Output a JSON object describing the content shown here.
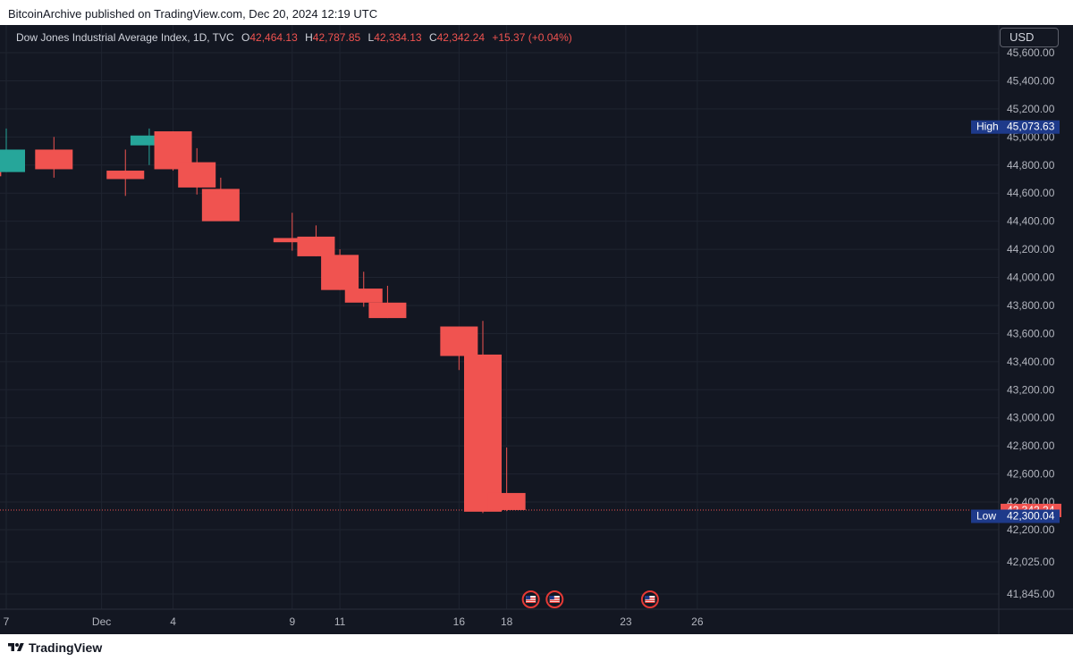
{
  "header": {
    "published_line": "BitcoinArchive published on TradingView.com, Dec 20, 2024 12:19 UTC"
  },
  "legend": {
    "symbol": "Dow Jones Industrial Average Index, 1D, TVC",
    "open_key": "O",
    "open_value": "42,464.13",
    "high_key": "H",
    "high_value": "42,787.85",
    "low_key": "L",
    "low_value": "42,334.13",
    "close_key": "C",
    "close_value": "42,342.24",
    "change": "+15.37 (+0.04%)"
  },
  "currency_button": "USD",
  "footer": {
    "logo_text": "TradingView"
  },
  "colors": {
    "background": "#131722",
    "grid": "#1f2430",
    "up": "#26a69a",
    "down": "#f05350",
    "axis_text": "#b2b5be",
    "marker_blue": "#1e3a8a"
  },
  "icons": {
    "event_marker": "us-flag-icon",
    "logo": "tradingview-logo-icon"
  },
  "chart_data": {
    "type": "candlestick",
    "y_axis": {
      "ticks": [
        45600,
        45400,
        45200,
        45000,
        44800,
        44600,
        44400,
        44200,
        44000,
        43800,
        43600,
        43400,
        43200,
        43000,
        42800,
        42600,
        42400,
        42200,
        42025,
        41845
      ],
      "tick_labels": [
        "45,600.00",
        "45,400.00",
        "45,200.00",
        "45,000.00",
        "44,800.00",
        "44,600.00",
        "44,400.00",
        "44,200.00",
        "44,000.00",
        "43,800.00",
        "43,600.00",
        "43,400.00",
        "43,200.00",
        "43,000.00",
        "42,800.00",
        "42,600.00",
        "42,400.00",
        "42,200.00",
        "42,025.00",
        "41,845.00"
      ]
    },
    "x_axis": {
      "ticks": [
        {
          "date": "2024-11-27",
          "label": "7"
        },
        {
          "date": "2024-12-01",
          "label": "Dec"
        },
        {
          "date": "2024-12-04",
          "label": "4"
        },
        {
          "date": "2024-12-09",
          "label": "9"
        },
        {
          "date": "2024-12-11",
          "label": "11"
        },
        {
          "date": "2024-12-16",
          "label": "16"
        },
        {
          "date": "2024-12-18",
          "label": "18"
        },
        {
          "date": "2024-12-23",
          "label": "23"
        },
        {
          "date": "2024-12-26",
          "label": "26"
        }
      ]
    },
    "candles": [
      {
        "date": "2024-11-26",
        "open": 44850,
        "high": 44870,
        "low": 44720,
        "close": 44720
      },
      {
        "date": "2024-11-27",
        "open": 44750,
        "high": 45060,
        "low": 44750,
        "close": 44910
      },
      {
        "date": "2024-11-29",
        "open": 44910,
        "high": 45000,
        "low": 44710,
        "close": 44770
      },
      {
        "date": "2024-12-02",
        "open": 44760,
        "high": 44910,
        "low": 44580,
        "close": 44700
      },
      {
        "date": "2024-12-03",
        "open": 44940,
        "high": 45060,
        "low": 44800,
        "close": 45010
      },
      {
        "date": "2024-12-04",
        "open": 45040,
        "high": 45040,
        "low": 44760,
        "close": 44770
      },
      {
        "date": "2024-12-05",
        "open": 44820,
        "high": 44920,
        "low": 44590,
        "close": 44640
      },
      {
        "date": "2024-12-06",
        "open": 44630,
        "high": 44710,
        "low": 44400,
        "close": 44400
      },
      {
        "date": "2024-12-09",
        "open": 44280,
        "high": 44460,
        "low": 44190,
        "close": 44250
      },
      {
        "date": "2024-12-10",
        "open": 44290,
        "high": 44370,
        "low": 44150,
        "close": 44150
      },
      {
        "date": "2024-12-11",
        "open": 44160,
        "high": 44200,
        "low": 43910,
        "close": 43910
      },
      {
        "date": "2024-12-12",
        "open": 43920,
        "high": 44040,
        "low": 43790,
        "close": 43820
      },
      {
        "date": "2024-12-13",
        "open": 43820,
        "high": 43940,
        "low": 43710,
        "close": 43710
      },
      {
        "date": "2024-12-16",
        "open": 43650,
        "high": 43650,
        "low": 43340,
        "close": 43440
      },
      {
        "date": "2024-12-17",
        "open": 43450,
        "high": 43690,
        "low": 42320,
        "close": 42330
      },
      {
        "date": "2024-12-18",
        "open": 42464.13,
        "high": 42787.85,
        "low": 42334.13,
        "close": 42342.24
      }
    ],
    "last_price": {
      "value": 42342.24,
      "label": "42,342.24"
    },
    "high_marker": {
      "text": "High",
      "value": 45073.63,
      "label": "45,073.63"
    },
    "low_marker": {
      "text": "Low",
      "value": 42300.04,
      "label": "42,300.04"
    },
    "event_markers": [
      {
        "date": "2024-12-18"
      },
      {
        "date": "2024-12-19"
      },
      {
        "date": "2024-12-23"
      }
    ],
    "grid": true
  }
}
